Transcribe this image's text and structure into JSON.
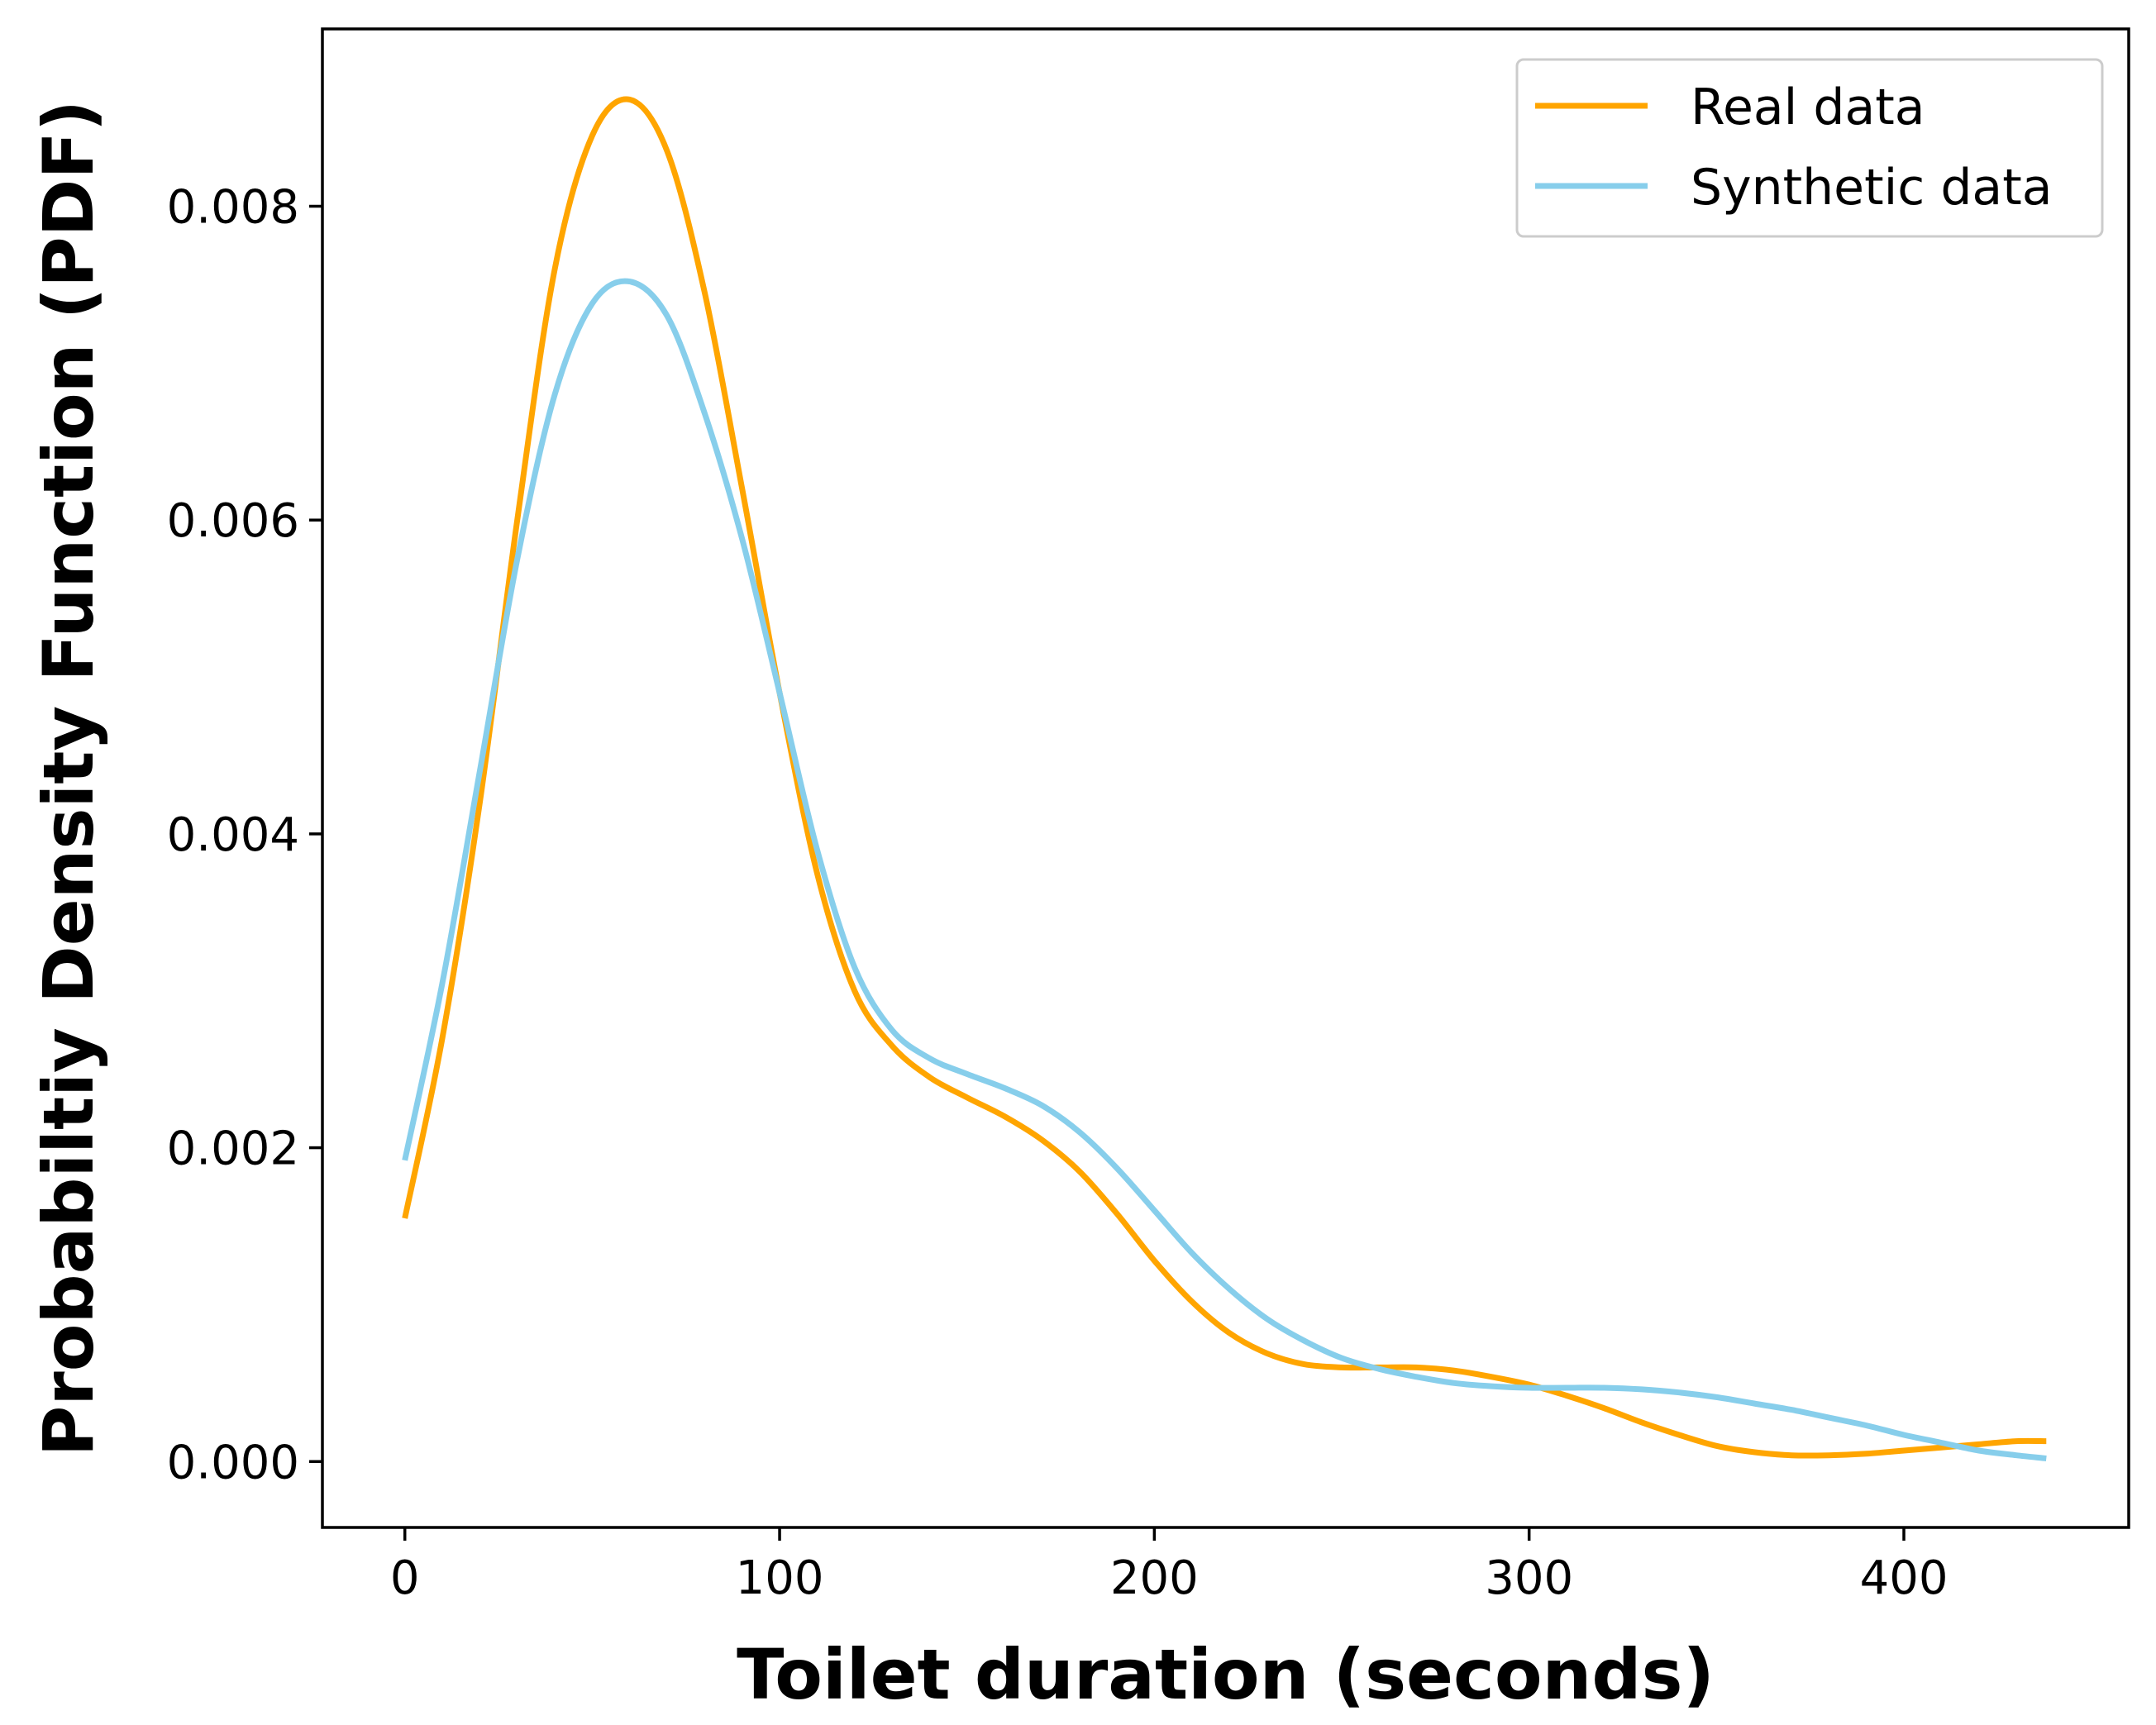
{
  "chart_data": {
    "type": "line",
    "xlabel": "Toilet duration (seconds)",
    "ylabel": "Probabiltiy Density Function (PDF)",
    "xlim": [
      -22,
      460
    ],
    "ylim": [
      -0.00042,
      0.00913
    ],
    "xticks": [
      0,
      100,
      200,
      300,
      400
    ],
    "yticks": [
      0.0,
      0.002,
      0.004,
      0.006,
      0.008
    ],
    "ytick_labels": [
      "0.000",
      "0.002",
      "0.004",
      "0.006",
      "0.008"
    ],
    "grid": false,
    "legend_position": "top-right",
    "x": [
      0,
      10,
      20,
      30,
      40,
      50,
      60,
      70,
      80,
      90,
      100,
      110,
      120,
      130,
      140,
      150,
      160,
      170,
      180,
      190,
      200,
      210,
      220,
      230,
      240,
      250,
      260,
      270,
      280,
      290,
      300,
      310,
      320,
      330,
      340,
      350,
      360,
      370,
      380,
      390,
      400,
      410,
      420,
      430,
      438
    ],
    "series": [
      {
        "name": "Real data",
        "color": "#FFA500",
        "values": [
          0.00155,
          0.0027,
          0.0042,
          0.006,
          0.0076,
          0.00845,
          0.00868,
          0.00835,
          0.00745,
          0.0062,
          0.0049,
          0.00375,
          0.003,
          0.00265,
          0.00245,
          0.00232,
          0.0022,
          0.00205,
          0.00185,
          0.00158,
          0.00128,
          0.00102,
          0.00082,
          0.00069,
          0.00062,
          0.0006,
          0.0006,
          0.0006,
          0.00058,
          0.00054,
          0.00049,
          0.00042,
          0.00034,
          0.00025,
          0.00017,
          0.0001,
          6e-05,
          4e-05,
          4e-05,
          5e-05,
          7e-05,
          9e-05,
          0.00011,
          0.00013,
          0.00013
        ]
      },
      {
        "name": "Synthetic data",
        "color": "#87CEEB",
        "values": [
          0.00192,
          0.00305,
          0.0044,
          0.00575,
          0.0068,
          0.00738,
          0.00752,
          0.0073,
          0.00668,
          0.00588,
          0.0049,
          0.0039,
          0.00315,
          0.00275,
          0.00257,
          0.00247,
          0.00238,
          0.00227,
          0.0021,
          0.00187,
          0.0016,
          0.00133,
          0.0011,
          0.00091,
          0.00077,
          0.00066,
          0.00059,
          0.00054,
          0.0005,
          0.00048,
          0.00047,
          0.00047,
          0.00047,
          0.00046,
          0.00044,
          0.00041,
          0.00037,
          0.00033,
          0.00028,
          0.00023,
          0.00017,
          0.00012,
          7e-05,
          4e-05,
          2e-05
        ]
      }
    ]
  }
}
